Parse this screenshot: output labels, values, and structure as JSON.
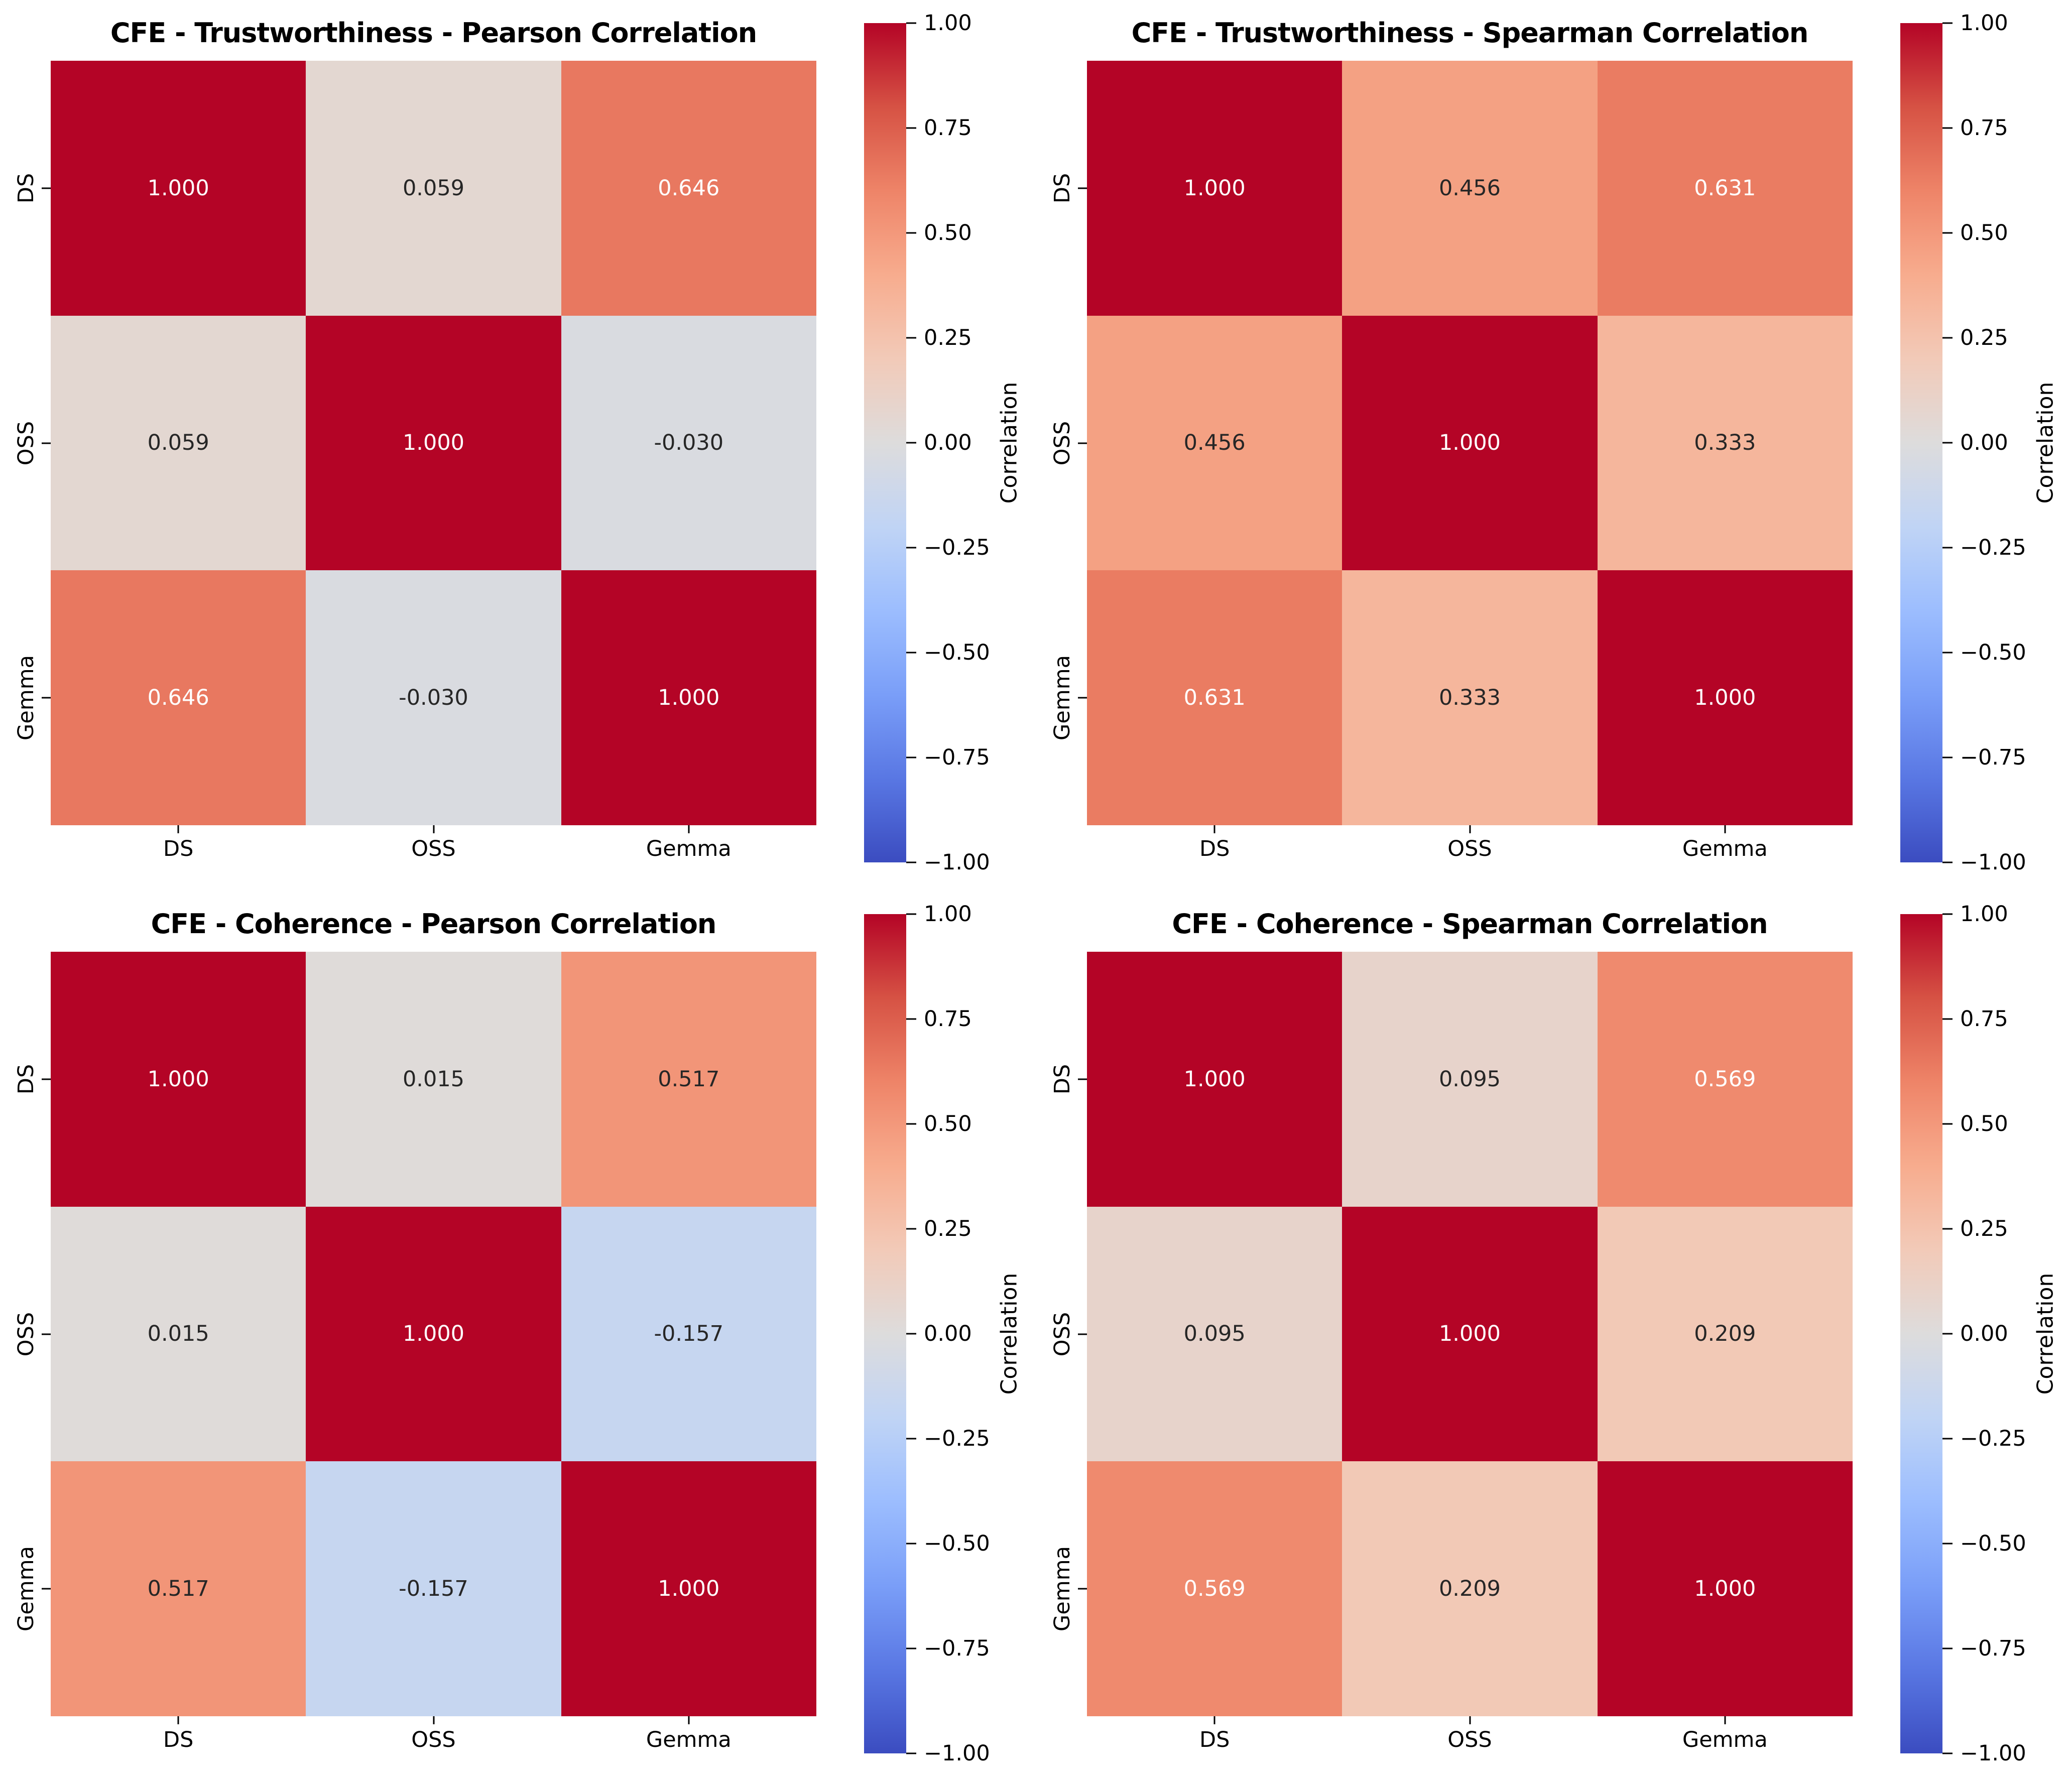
{
  "figure": {
    "background": "#ffffff",
    "annotation_text_colors": {
      "light": "#ffffff",
      "dark": "#262626"
    },
    "colormap": {
      "name": "coolwarm",
      "stops": [
        "#3b4cc0",
        "#5977e3",
        "#7a9ef8",
        "#9cbdfe",
        "#c0d4f5",
        "#dddcdc",
        "#f2cab8",
        "#f7ac8e",
        "#ee8468",
        "#d65244",
        "#b40426"
      ]
    },
    "colorbar": {
      "label": "Correlation",
      "vmin": -1,
      "vmax": 1,
      "tick_values": [
        1,
        0.75,
        0.5,
        0.25,
        0,
        -0.25,
        -0.5,
        -0.75,
        -1
      ],
      "tick_labels": [
        "1.00",
        "0.75",
        "0.50",
        "0.25",
        "0.00",
        "−0.25",
        "−0.50",
        "−0.75",
        "−1.00"
      ]
    }
  },
  "chart_data": [
    {
      "type": "heatmap",
      "title": "CFE - Trustworthiness - Pearson Correlation",
      "x": [
        "DS",
        "OSS",
        "Gemma"
      ],
      "y": [
        "DS",
        "OSS",
        "Gemma"
      ],
      "values": [
        [
          1.0,
          0.059,
          0.646
        ],
        [
          0.059,
          1.0,
          -0.03
        ],
        [
          0.646,
          -0.03,
          1.0
        ]
      ],
      "vmin": -1,
      "vmax": 1,
      "annot_format": "0.3f",
      "colorbar_label": "Correlation"
    },
    {
      "type": "heatmap",
      "title": "CFE - Trustworthiness - Spearman Correlation",
      "x": [
        "DS",
        "OSS",
        "Gemma"
      ],
      "y": [
        "DS",
        "OSS",
        "Gemma"
      ],
      "values": [
        [
          1.0,
          0.456,
          0.631
        ],
        [
          0.456,
          1.0,
          0.333
        ],
        [
          0.631,
          0.333,
          1.0
        ]
      ],
      "vmin": -1,
      "vmax": 1,
      "annot_format": "0.3f",
      "colorbar_label": "Correlation"
    },
    {
      "type": "heatmap",
      "title": "CFE - Coherence - Pearson Correlation",
      "x": [
        "DS",
        "OSS",
        "Gemma"
      ],
      "y": [
        "DS",
        "OSS",
        "Gemma"
      ],
      "values": [
        [
          1.0,
          0.015,
          0.517
        ],
        [
          0.015,
          1.0,
          -0.157
        ],
        [
          0.517,
          -0.157,
          1.0
        ]
      ],
      "vmin": -1,
      "vmax": 1,
      "annot_format": "0.3f",
      "colorbar_label": "Correlation"
    },
    {
      "type": "heatmap",
      "title": "CFE - Coherence - Spearman Correlation",
      "x": [
        "DS",
        "OSS",
        "Gemma"
      ],
      "y": [
        "DS",
        "OSS",
        "Gemma"
      ],
      "values": [
        [
          1.0,
          0.095,
          0.569
        ],
        [
          0.095,
          1.0,
          0.209
        ],
        [
          0.569,
          0.209,
          1.0
        ]
      ],
      "vmin": -1,
      "vmax": 1,
      "annot_format": "0.3f",
      "colorbar_label": "Correlation"
    }
  ]
}
